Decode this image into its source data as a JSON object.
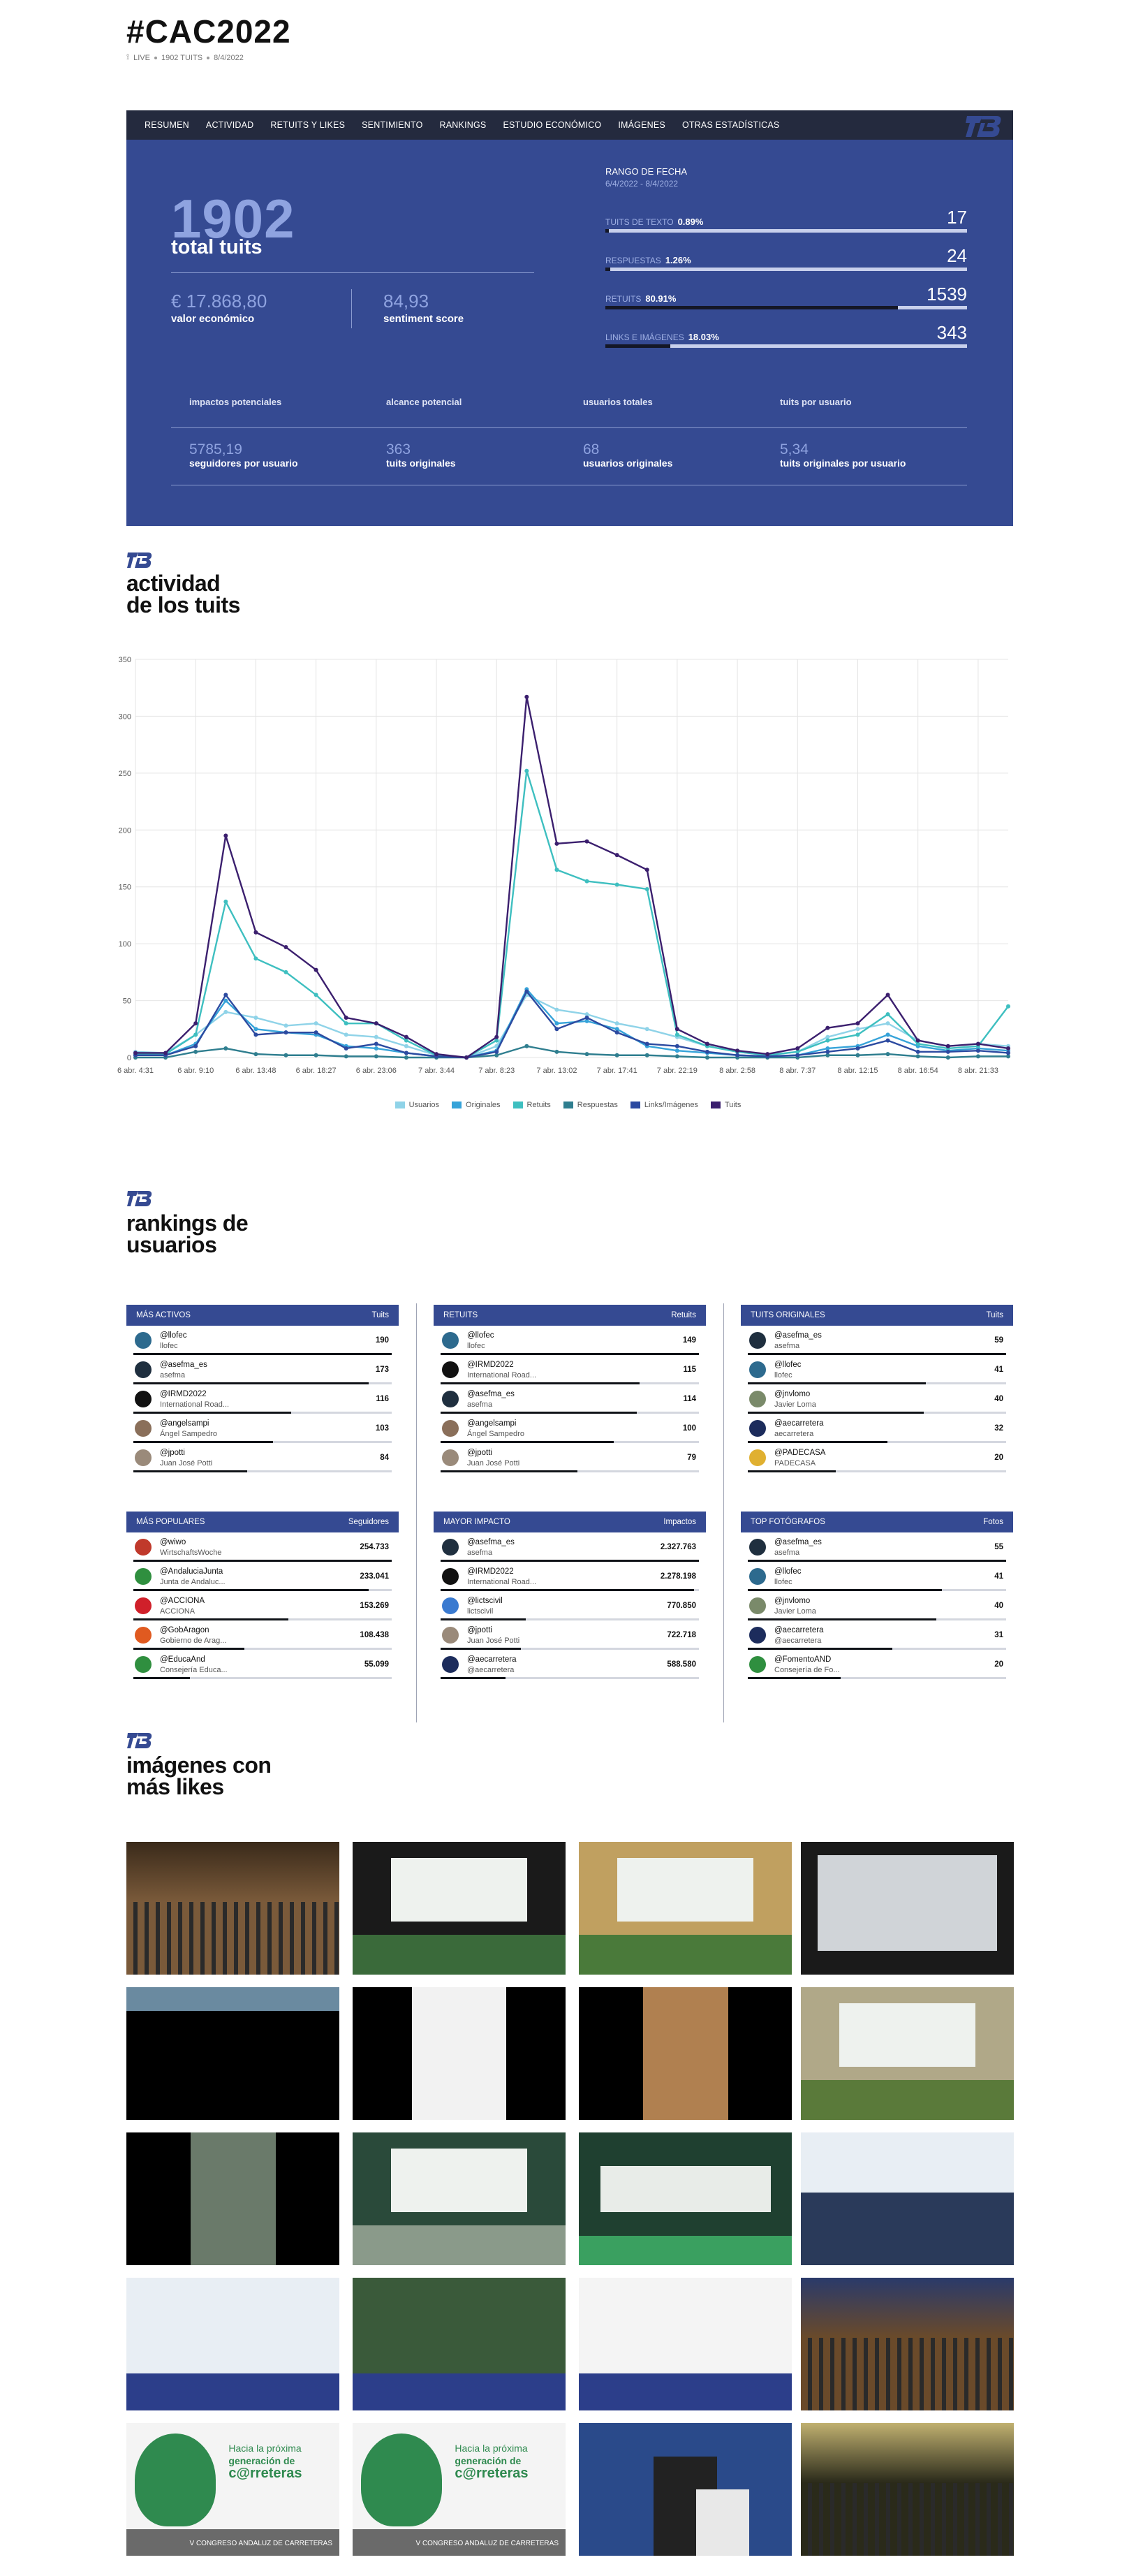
{
  "header": {
    "title": "#CAC2022",
    "live": "LIVE",
    "tweets": "1902 TUITS",
    "date": "8/4/2022"
  },
  "nav": [
    "RESUMEN",
    "ACTIVIDAD",
    "RETUITS Y LIKES",
    "SENTIMIENTO",
    "RANKINGS",
    "ESTUDIO ECONÓMICO",
    "IMÁGENES",
    "OTRAS ESTADÍSTICAS"
  ],
  "summary": {
    "total": "1902",
    "total_label": "total tuits",
    "econ_value": "€ 17.868,80",
    "econ_label": "valor económico",
    "sentiment_value": "84,93",
    "sentiment_label": "sentiment score",
    "range_title": "RANGO DE FECHA",
    "range_value": "6/4/2022 - 8/4/2022",
    "stats": [
      {
        "label": "TUITS DE TEXTO",
        "pct": "0.89%",
        "value": "17",
        "fraction": 0.0089
      },
      {
        "label": "RESPUESTAS",
        "pct": "1.26%",
        "value": "24",
        "fraction": 0.0126
      },
      {
        "label": "RETUITS",
        "pct": "80.91%",
        "value": "1539",
        "fraction": 0.8091
      },
      {
        "label": "LINKS E IMÁGENES",
        "pct": "18.03%",
        "value": "343",
        "fraction": 0.1803
      }
    ],
    "metrics_cut": [
      "impactos potenciales",
      "alcance potencial",
      "usuarios totales",
      "tuits por usuario"
    ],
    "metrics": [
      {
        "value": "5785,19",
        "label": "seguidores por usuario"
      },
      {
        "value": "363",
        "label": "tuits originales"
      },
      {
        "value": "68",
        "label": "usuarios originales"
      },
      {
        "value": "5,34",
        "label": "tuits originales por usuario"
      }
    ]
  },
  "sections": {
    "activity_l1": "actividad",
    "activity_l2": "de los tuits",
    "rankings_l1": "rankings de",
    "rankings_l2": "usuarios",
    "images_l1": "imágenes con",
    "images_l2": "más likes"
  },
  "chart_data": {
    "type": "line",
    "x": [
      "6 abr. 4:31",
      "",
      "6 abr. 9:10",
      "",
      "6 abr. 13:48",
      "",
      "6 abr. 18:27",
      "",
      "6 abr. 23:06",
      "",
      "7 abr. 3:44",
      "",
      "7 abr. 8:23",
      "",
      "7 abr. 13:02",
      "",
      "7 abr. 17:41",
      "",
      "7 abr. 22:19",
      "",
      "8 abr. 2:58",
      "",
      "8 abr. 7:37",
      "",
      "8 abr. 12:15",
      "",
      "8 abr. 16:54",
      "",
      "8 abr. 21:33",
      ""
    ],
    "x_ticks": [
      "6 abr. 4:31",
      "6 abr. 9:10",
      "6 abr. 13:48",
      "6 abr. 18:27",
      "6 abr. 23:06",
      "7 abr. 3:44",
      "7 abr. 8:23",
      "7 abr. 13:02",
      "7 abr. 17:41",
      "7 abr. 22:19",
      "8 abr. 2:58",
      "8 abr. 7:37",
      "8 abr. 12:15",
      "8 abr. 16:54",
      "8 abr. 21:33"
    ],
    "ylim": [
      0,
      350
    ],
    "y_ticks": [
      0,
      50,
      100,
      150,
      200,
      250,
      300,
      350
    ],
    "grid": true,
    "legend_position": "bottom",
    "series": [
      {
        "name": "Usuarios",
        "color": "#8fd3e8",
        "values": [
          5,
          4,
          20,
          40,
          35,
          28,
          30,
          20,
          18,
          10,
          2,
          0,
          10,
          55,
          42,
          38,
          30,
          25,
          18,
          10,
          5,
          2,
          5,
          18,
          25,
          30,
          15,
          10,
          12,
          10
        ]
      },
      {
        "name": "Originales",
        "color": "#36a3d9",
        "values": [
          2,
          2,
          12,
          50,
          25,
          22,
          20,
          10,
          8,
          4,
          1,
          0,
          6,
          60,
          30,
          32,
          25,
          10,
          6,
          4,
          2,
          1,
          2,
          8,
          10,
          20,
          10,
          6,
          8,
          6
        ]
      },
      {
        "name": "Retuits",
        "color": "#3ebfc0",
        "values": [
          3,
          3,
          20,
          137,
          87,
          75,
          55,
          30,
          30,
          15,
          2,
          0,
          15,
          252,
          165,
          155,
          152,
          148,
          20,
          10,
          5,
          2,
          5,
          15,
          20,
          38,
          12,
          8,
          10,
          45
        ]
      },
      {
        "name": "Respuestas",
        "color": "#2f7e8f",
        "values": [
          0,
          0,
          5,
          8,
          3,
          2,
          2,
          1,
          1,
          0,
          0,
          0,
          2,
          10,
          5,
          3,
          2,
          2,
          1,
          0,
          0,
          0,
          0,
          2,
          2,
          3,
          1,
          0,
          1,
          1
        ]
      },
      {
        "name": "Links/Imágenes",
        "color": "#2c4aa0",
        "values": [
          2,
          2,
          10,
          55,
          20,
          22,
          22,
          8,
          12,
          4,
          1,
          0,
          5,
          58,
          25,
          35,
          22,
          12,
          10,
          5,
          2,
          1,
          2,
          5,
          8,
          15,
          5,
          5,
          6,
          4
        ]
      },
      {
        "name": "Tuits",
        "color": "#3b1f6e",
        "values": [
          4,
          4,
          30,
          195,
          110,
          97,
          77,
          35,
          30,
          18,
          3,
          0,
          18,
          317,
          188,
          190,
          178,
          165,
          25,
          12,
          6,
          3,
          8,
          26,
          30,
          55,
          15,
          10,
          12,
          8
        ]
      }
    ]
  },
  "rankings": [
    {
      "title": "MÁS ACTIVOS",
      "unit": "Tuits",
      "rows": [
        {
          "name": "@llofec",
          "sub": "llofec",
          "value": "190",
          "fraction": 1.0,
          "av": "#2d6a8e"
        },
        {
          "name": "@asefma_es",
          "sub": "asefma",
          "value": "173",
          "fraction": 0.91,
          "av": "#1f2f3f"
        },
        {
          "name": "@IRMD2022",
          "sub": "International Road...",
          "value": "116",
          "fraction": 0.61,
          "av": "#111111"
        },
        {
          "name": "@angelsampi",
          "sub": "Ángel Sampedro",
          "value": "103",
          "fraction": 0.54,
          "av": "#8a6f5a"
        },
        {
          "name": "@jpotti",
          "sub": "Juan José Potti",
          "value": "84",
          "fraction": 0.44,
          "av": "#9a8a7a"
        }
      ]
    },
    {
      "title": "RETUITS",
      "unit": "Retuits",
      "rows": [
        {
          "name": "@llofec",
          "sub": "llofec",
          "value": "149",
          "fraction": 1.0,
          "av": "#2d6a8e"
        },
        {
          "name": "@IRMD2022",
          "sub": "International Road...",
          "value": "115",
          "fraction": 0.77,
          "av": "#111111"
        },
        {
          "name": "@asefma_es",
          "sub": "asefma",
          "value": "114",
          "fraction": 0.76,
          "av": "#1f2f3f"
        },
        {
          "name": "@angelsampi",
          "sub": "Ángel Sampedro",
          "value": "100",
          "fraction": 0.67,
          "av": "#8a6f5a"
        },
        {
          "name": "@jpotti",
          "sub": "Juan José Potti",
          "value": "79",
          "fraction": 0.53,
          "av": "#9a8a7a"
        }
      ]
    },
    {
      "title": "TUITS ORIGINALES",
      "unit": "Tuits",
      "rows": [
        {
          "name": "@asefma_es",
          "sub": "asefma",
          "value": "59",
          "fraction": 1.0,
          "av": "#1f2f3f"
        },
        {
          "name": "@llofec",
          "sub": "llofec",
          "value": "41",
          "fraction": 0.69,
          "av": "#2d6a8e"
        },
        {
          "name": "@jnvlomo",
          "sub": "Javier Loma",
          "value": "40",
          "fraction": 0.68,
          "av": "#7a8a6a"
        },
        {
          "name": "@aecarretera",
          "sub": "aecarretera",
          "value": "32",
          "fraction": 0.54,
          "av": "#1c2c5c"
        },
        {
          "name": "@PADECASA",
          "sub": "PADECASA",
          "value": "20",
          "fraction": 0.34,
          "av": "#e0b030"
        }
      ]
    },
    {
      "title": "MÁS POPULARES",
      "unit": "Seguidores",
      "rows": [
        {
          "name": "@wiwo",
          "sub": "WirtschaftsWoche",
          "value": "254.733",
          "fraction": 1.0,
          "av": "#c0392b"
        },
        {
          "name": "@AndaluciaJunta",
          "sub": "Junta de Andaluc...",
          "value": "233.041",
          "fraction": 0.91,
          "av": "#2f8f3f"
        },
        {
          "name": "@ACCIONA",
          "sub": "ACCIONA",
          "value": "153.269",
          "fraction": 0.6,
          "av": "#d0202a"
        },
        {
          "name": "@GobAragon",
          "sub": "Gobierno de Arag...",
          "value": "108.438",
          "fraction": 0.43,
          "av": "#e05a20"
        },
        {
          "name": "@EducaAnd",
          "sub": "Consejería Educa...",
          "value": "55.099",
          "fraction": 0.22,
          "av": "#2f8f3f"
        }
      ]
    },
    {
      "title": "MAYOR IMPACTO",
      "unit": "Impactos",
      "rows": [
        {
          "name": "@asefma_es",
          "sub": "asefma",
          "value": "2.327.763",
          "fraction": 1.0,
          "av": "#1f2f3f"
        },
        {
          "name": "@IRMD2022",
          "sub": "International Road...",
          "value": "2.278.198",
          "fraction": 0.98,
          "av": "#111111"
        },
        {
          "name": "@lictscivil",
          "sub": "lictscivil",
          "value": "770.850",
          "fraction": 0.33,
          "av": "#3a7ad0"
        },
        {
          "name": "@jpotti",
          "sub": "Juan José Potti",
          "value": "722.718",
          "fraction": 0.31,
          "av": "#9a8a7a"
        },
        {
          "name": "@aecarretera",
          "sub": "@aecarretera",
          "value": "588.580",
          "fraction": 0.25,
          "av": "#1c2c5c"
        }
      ]
    },
    {
      "title": "TOP FOTÓGRAFOS",
      "unit": "Fotos",
      "rows": [
        {
          "name": "@asefma_es",
          "sub": "asefma",
          "value": "55",
          "fraction": 1.0,
          "av": "#1f2f3f"
        },
        {
          "name": "@llofec",
          "sub": "llofec",
          "value": "41",
          "fraction": 0.75,
          "av": "#2d6a8e"
        },
        {
          "name": "@jnvlomo",
          "sub": "Javier Loma",
          "value": "40",
          "fraction": 0.73,
          "av": "#7a8a6a"
        },
        {
          "name": "@aecarretera",
          "sub": "@aecarretera",
          "value": "31",
          "fraction": 0.56,
          "av": "#1c2c5c"
        },
        {
          "name": "@FomentoAND",
          "sub": "Consejería de Fo...",
          "value": "20",
          "fraction": 0.36,
          "av": "#2f8f3f"
        }
      ]
    }
  ],
  "images": [
    {
      "kind": "auditorium",
      "c1": "#7a5a3a",
      "c2": "#3a2a1a"
    },
    {
      "kind": "stage",
      "c1": "#1a1a1a",
      "c2": "#3a6a3a"
    },
    {
      "kind": "stage",
      "c1": "#c0a060",
      "c2": "#4a7a3a"
    },
    {
      "kind": "screen",
      "c1": "#1a1a1a",
      "c2": "#d0d4d8"
    },
    {
      "kind": "strip",
      "c1": "#000000",
      "c2": "#6a8aa0"
    },
    {
      "kind": "phone",
      "c1": "#000000",
      "c2": "#f2f2f2"
    },
    {
      "kind": "portrait",
      "c1": "#000000",
      "c2": "#b08050"
    },
    {
      "kind": "stage",
      "c1": "#b0a888",
      "c2": "#5a7a3a"
    },
    {
      "kind": "portrait",
      "c1": "#000000",
      "c2": "#6a7a6a"
    },
    {
      "kind": "stage",
      "c1": "#2a4a3a",
      "c2": "#8a9a8a"
    },
    {
      "kind": "slide",
      "c1": "#1f4030",
      "c2": "#3aa060"
    },
    {
      "kind": "people",
      "c1": "#e8eef4",
      "c2": "#2a3a5a"
    },
    {
      "kind": "banner",
      "c1": "#e8eef4",
      "c2": "#2c3e8a"
    },
    {
      "kind": "banner",
      "c1": "#3a5a3a",
      "c2": "#2c3e8a"
    },
    {
      "kind": "banner",
      "c1": "#f4f4f4",
      "c2": "#2c3e8a"
    },
    {
      "kind": "auditorium",
      "c1": "#6a4a2a",
      "c2": "#2a3a6a"
    },
    {
      "kind": "poster",
      "c1": "#f4f4f4",
      "c2": "#2f8a4f"
    },
    {
      "kind": "poster",
      "c1": "#f4f4f4",
      "c2": "#2f8a4f"
    },
    {
      "kind": "speaker",
      "c1": "#2a4a8a",
      "c2": "#e8e8e8"
    },
    {
      "kind": "auditorium",
      "c1": "#2a2a1a",
      "c2": "#c0b070"
    }
  ],
  "poster_text": {
    "l1": "Hacia la próxima",
    "l2": "generación de",
    "l3": "c@rreteras",
    "l4": "V CONGRESO ANDALUZ DE CARRETERAS"
  }
}
